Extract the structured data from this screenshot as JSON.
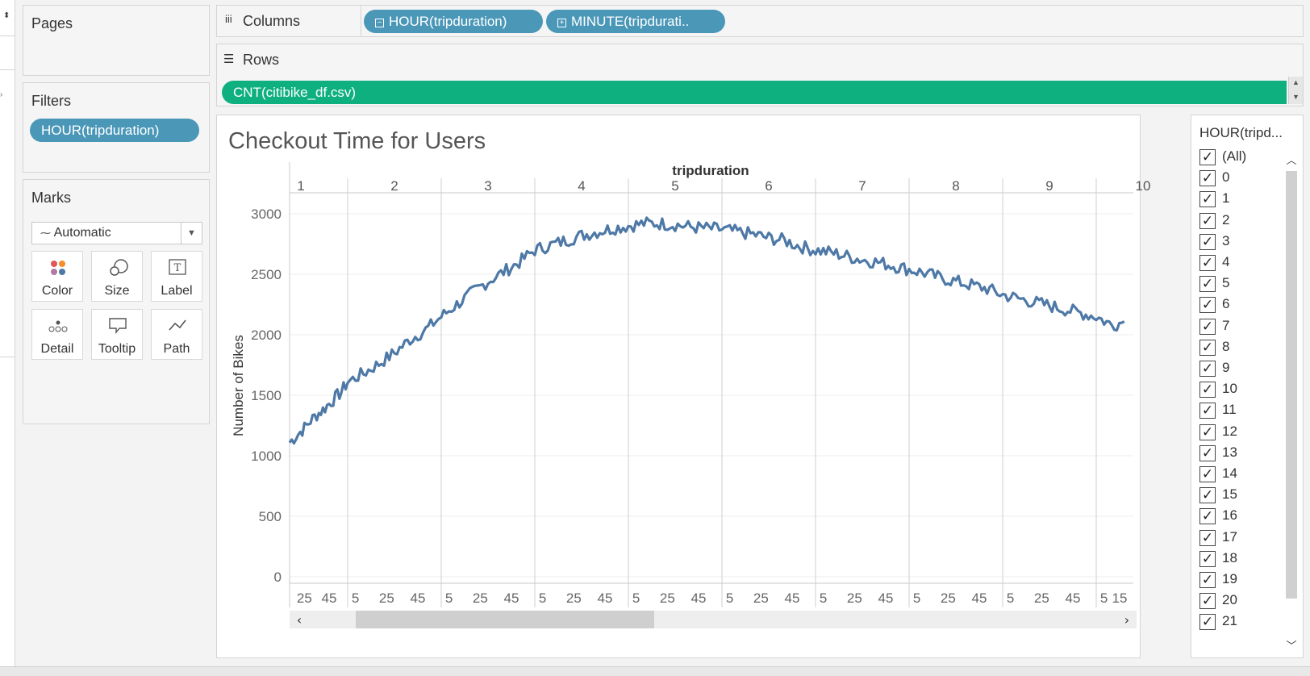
{
  "panels": {
    "pages_title": "Pages",
    "filters_title": "Filters",
    "filter_pill": "HOUR(tripduration)",
    "marks_title": "Marks",
    "marks_type": "Automatic",
    "mark_buttons": [
      "Color",
      "Size",
      "Label",
      "Detail",
      "Tooltip",
      "Path"
    ]
  },
  "shelves": {
    "columns_label": "Columns",
    "columns_pills": [
      "HOUR(tripduration)",
      "MINUTE(tripdurati.."
    ],
    "rows_label": "Rows",
    "rows_pill": "CNT(citibike_df.csv)"
  },
  "viz": {
    "title": "Checkout Time for Users"
  },
  "legend": {
    "title": "HOUR(tripd...",
    "items": [
      "(All)",
      "0",
      "1",
      "2",
      "3",
      "4",
      "5",
      "6",
      "7",
      "8",
      "9",
      "10",
      "11",
      "12",
      "13",
      "14",
      "15",
      "16",
      "17",
      "18",
      "19",
      "20",
      "21"
    ],
    "checked": true
  },
  "colors": {
    "line": "#4e79a7",
    "pill_blue": "#4a97b8",
    "pill_green": "#0fb07f"
  },
  "chart_data": {
    "type": "line",
    "title": "Checkout Time for Users",
    "top_axis_title": "tripduration",
    "ylabel": "Number of Bikes",
    "ylim": [
      0,
      3000
    ],
    "yticks": [
      0,
      500,
      1000,
      1500,
      2000,
      2500,
      3000
    ],
    "grid": true,
    "panes": [
      "1",
      "2",
      "3",
      "4",
      "5",
      "6",
      "7",
      "8",
      "9",
      "10"
    ],
    "minute_tick_labels": [
      [
        "25",
        "45"
      ],
      [
        "5",
        "25",
        "45"
      ],
      [
        "5",
        "25",
        "45"
      ],
      [
        "5",
        "25",
        "45"
      ],
      [
        "5",
        "25",
        "45"
      ],
      [
        "5",
        "25",
        "45"
      ],
      [
        "5",
        "25",
        "45"
      ],
      [
        "5",
        "25",
        "45"
      ],
      [
        "5",
        "25",
        "45"
      ],
      [
        "5",
        "15"
      ]
    ],
    "series": [
      {
        "hours": [
          "1",
          "2",
          "3",
          "4",
          "5",
          "6",
          "7",
          "8",
          "9",
          "10"
        ],
        "points": [
          [
            1,
            13,
            1110
          ],
          [
            1,
            20,
            1180
          ],
          [
            1,
            25,
            1230
          ],
          [
            1,
            30,
            1290
          ],
          [
            1,
            35,
            1340
          ],
          [
            1,
            40,
            1380
          ],
          [
            1,
            45,
            1430
          ],
          [
            1,
            50,
            1480
          ],
          [
            1,
            55,
            1530
          ],
          [
            2,
            0,
            1610
          ],
          [
            2,
            10,
            1680
          ],
          [
            2,
            20,
            1760
          ],
          [
            2,
            30,
            1850
          ],
          [
            2,
            40,
            1960
          ],
          [
            2,
            50,
            2040
          ],
          [
            3,
            0,
            2150
          ],
          [
            3,
            10,
            2250
          ],
          [
            3,
            20,
            2350
          ],
          [
            3,
            30,
            2440
          ],
          [
            3,
            40,
            2520
          ],
          [
            3,
            50,
            2600
          ],
          [
            4,
            0,
            2700
          ],
          [
            4,
            10,
            2740
          ],
          [
            4,
            20,
            2780
          ],
          [
            4,
            30,
            2820
          ],
          [
            4,
            40,
            2850
          ],
          [
            4,
            50,
            2880
          ],
          [
            5,
            0,
            2900
          ],
          [
            5,
            10,
            2920
          ],
          [
            5,
            20,
            2920
          ],
          [
            5,
            30,
            2910
          ],
          [
            5,
            40,
            2890
          ],
          [
            5,
            50,
            2880
          ],
          [
            6,
            0,
            2870
          ],
          [
            6,
            10,
            2850
          ],
          [
            6,
            20,
            2830
          ],
          [
            6,
            30,
            2800
          ],
          [
            6,
            40,
            2780
          ],
          [
            6,
            50,
            2730
          ],
          [
            7,
            0,
            2700
          ],
          [
            7,
            10,
            2680
          ],
          [
            7,
            20,
            2650
          ],
          [
            7,
            30,
            2620
          ],
          [
            7,
            40,
            2600
          ],
          [
            7,
            50,
            2570
          ],
          [
            8,
            0,
            2540
          ],
          [
            8,
            10,
            2510
          ],
          [
            8,
            20,
            2470
          ],
          [
            8,
            30,
            2440
          ],
          [
            8,
            40,
            2410
          ],
          [
            8,
            50,
            2380
          ],
          [
            9,
            0,
            2330
          ],
          [
            9,
            10,
            2300
          ],
          [
            9,
            20,
            2270
          ],
          [
            9,
            30,
            2240
          ],
          [
            9,
            40,
            2210
          ],
          [
            9,
            50,
            2180
          ],
          [
            10,
            0,
            2150
          ],
          [
            10,
            10,
            2080
          ],
          [
            10,
            18,
            2110
          ]
        ]
      }
    ]
  }
}
